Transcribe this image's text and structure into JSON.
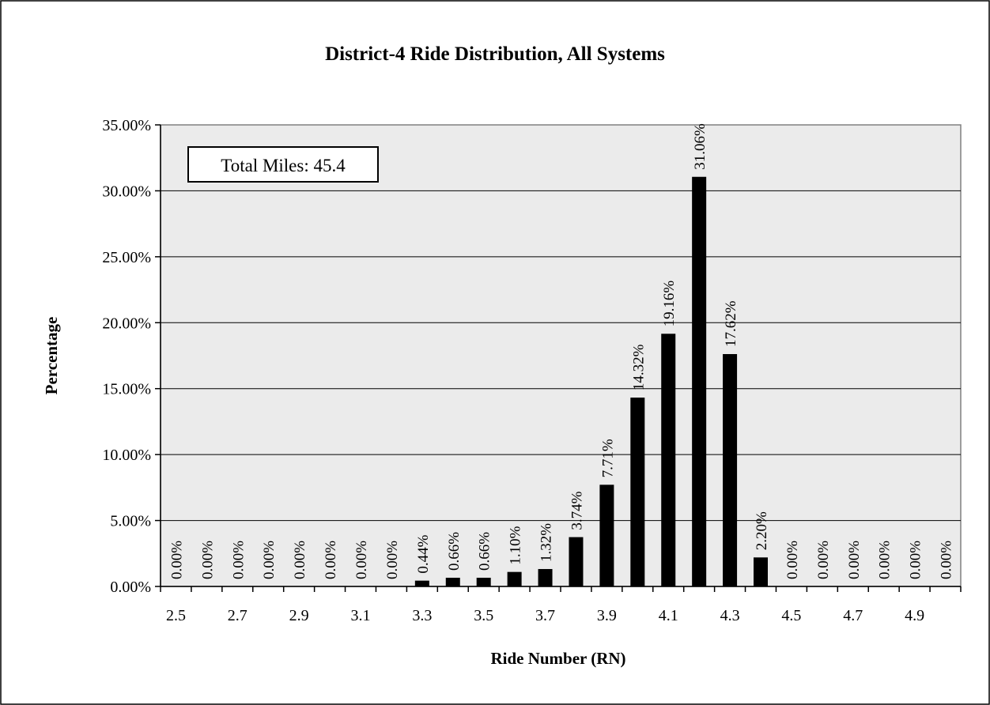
{
  "chart_data": {
    "type": "bar",
    "title": "District-4 Ride Distribution, All Systems",
    "xlabel": "Ride Number (RN)",
    "ylabel": "Percentage",
    "annotation": "Total Miles: 45.4",
    "ylim": [
      0,
      35
    ],
    "y_ticks": [
      "0.00%",
      "5.00%",
      "10.00%",
      "15.00%",
      "20.00%",
      "25.00%",
      "30.00%",
      "35.00%"
    ],
    "x_tick_labels": [
      "2.5",
      "2.7",
      "2.9",
      "3.1",
      "3.3",
      "3.5",
      "3.7",
      "3.9",
      "4.1",
      "4.3",
      "4.5",
      "4.7",
      "4.9"
    ],
    "categories": [
      "2.5",
      "2.6",
      "2.7",
      "2.8",
      "2.9",
      "3.0",
      "3.1",
      "3.2",
      "3.3",
      "3.4",
      "3.5",
      "3.6",
      "3.7",
      "3.8",
      "3.9",
      "4.0",
      "4.1",
      "4.2",
      "4.3",
      "4.4",
      "4.5",
      "4.6",
      "4.7",
      "4.8",
      "4.9",
      "5.0"
    ],
    "values": [
      0,
      0,
      0,
      0,
      0,
      0,
      0,
      0,
      0.44,
      0.66,
      0.66,
      1.1,
      1.32,
      3.74,
      7.71,
      14.32,
      19.16,
      31.06,
      17.62,
      2.2,
      0,
      0,
      0,
      0,
      0,
      0
    ],
    "data_labels": [
      "0.00%",
      "0.00%",
      "0.00%",
      "0.00%",
      "0.00%",
      "0.00%",
      "0.00%",
      "0.00%",
      "0.44%",
      "0.66%",
      "0.66%",
      "1.10%",
      "1.32%",
      "3.74%",
      "7.71%",
      "14.32%",
      "19.16%",
      "31.06%",
      "17.62%",
      "2.20%",
      "0.00%",
      "0.00%",
      "0.00%",
      "0.00%",
      "0.00%",
      "0.00%"
    ],
    "grid": true,
    "colors": {
      "bar": "#000000",
      "plot_bg": "#ebebeb",
      "grid": "#000000"
    }
  }
}
